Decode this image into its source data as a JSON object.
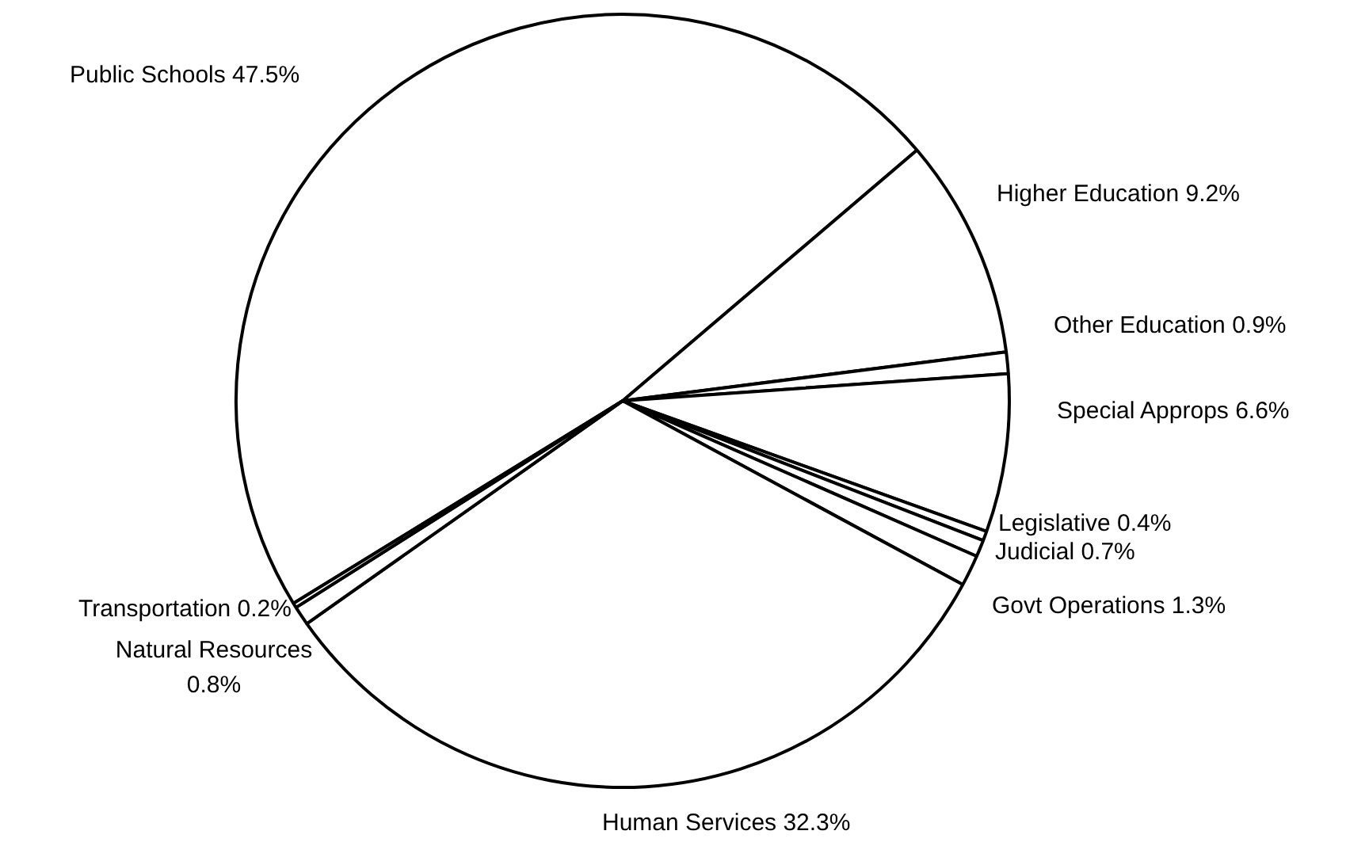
{
  "chart_data": {
    "type": "pie",
    "categories": [
      "Public Schools",
      "Higher Education",
      "Other Education",
      "Special Approps",
      "Legislative",
      "Judicial",
      "Govt Operations",
      "Human Services",
      "Natural Resources",
      "Transportation"
    ],
    "values": [
      47.5,
      9.2,
      0.9,
      6.6,
      0.4,
      0.7,
      1.3,
      32.3,
      0.8,
      0.2
    ],
    "value_labels": [
      "47.5%",
      "9.2%",
      "0.9%",
      "6.6%",
      "0.4%",
      "0.7%",
      "1.3%",
      "32.3%",
      "0.8%",
      "0.2%"
    ],
    "colors": [
      "#ffffff",
      "#ffffff",
      "#ffffff",
      "#ffffff",
      "#ffffff",
      "#ffffff",
      "#ffffff",
      "#ffffff",
      "#ffffff",
      "#ffffff"
    ],
    "legend": false
  }
}
